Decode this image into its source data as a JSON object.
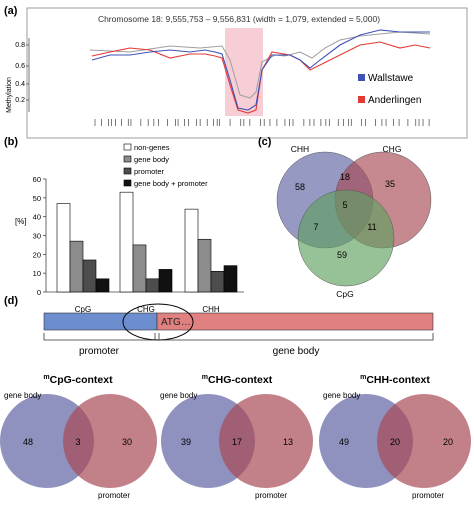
{
  "panel_a": {
    "label": "(a)",
    "title": "Chromosome 18: 9,555,753 – 9,556,831 (width = 1,079, extended = 5,000)",
    "ylabel": "Methylation",
    "yticks": [
      "0.2",
      "0.4",
      "0.6",
      "0.8"
    ],
    "legend": [
      "Wallstawe",
      "Anderlingen"
    ],
    "colors": {
      "wallstawe": "#3f51b5",
      "anderlingen": "#e53935",
      "highlight": "#f6c6cf",
      "gray": "#9e9e9e"
    }
  },
  "panel_b": {
    "label": "(b)",
    "legend": [
      "non-genes",
      "gene body",
      "promoter",
      "gene body + promoter"
    ],
    "ylabel": "[%]",
    "yticks": [
      "0",
      "10",
      "20",
      "30",
      "40",
      "50",
      "60"
    ],
    "chart_data": {
      "type": "bar",
      "categories": [
        "CpG",
        "CHG",
        "CHH"
      ],
      "series": [
        {
          "name": "non-genes",
          "values": [
            47,
            53,
            44
          ]
        },
        {
          "name": "gene body",
          "values": [
            27,
            25,
            28
          ]
        },
        {
          "name": "promoter",
          "values": [
            17,
            7,
            11
          ]
        },
        {
          "name": "gene body + promoter",
          "values": [
            7,
            12,
            14
          ]
        }
      ],
      "ylabel": "[%]",
      "ylim": [
        0,
        60
      ]
    }
  },
  "panel_c": {
    "label": "(c)",
    "sets": [
      "CHH",
      "CHG",
      "CpG"
    ],
    "values": {
      "chh_only": "58",
      "chg_only": "35",
      "cpg_only": "59",
      "chh_chg": "18",
      "chh_cpg": "7",
      "chg_cpg": "11",
      "all": "5"
    }
  },
  "panel_d": {
    "label": "(d)",
    "atg": "ATG…",
    "promoter": "promoter",
    "gene_body": "gene body",
    "venns": [
      {
        "title_sup": "m",
        "title": "CpG-context",
        "left_label": "gene body",
        "right_label": "promoter",
        "left": "48",
        "middle": "3",
        "right": "30"
      },
      {
        "title_sup": "m",
        "title": "CHG-context",
        "left_label": "gene body",
        "right_label": "promoter",
        "left": "39",
        "middle": "17",
        "right": "13"
      },
      {
        "title_sup": "m",
        "title": "CHH-context",
        "left_label": "gene body",
        "right_label": "promoter",
        "left": "49",
        "middle": "20",
        "right": "20"
      }
    ]
  }
}
